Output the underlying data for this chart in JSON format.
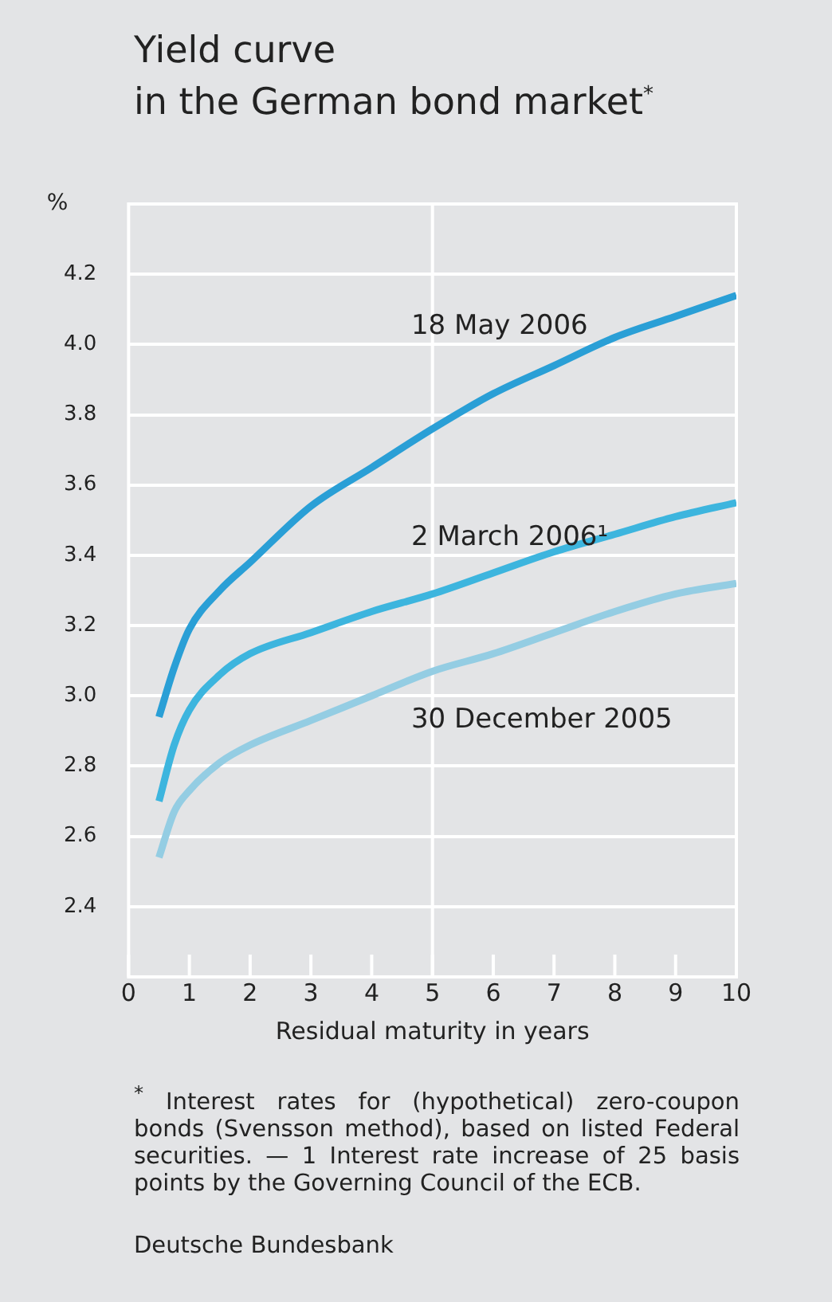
{
  "chart_data": {
    "type": "line",
    "title": "Yield curve\nin the German bond market$^{*}$",
    "xlabel": "Residual maturity in years",
    "ylabel": "%",
    "xlim": [
      0,
      10
    ],
    "xticks": [
      0,
      1,
      2,
      3,
      4,
      5,
      6,
      7,
      8,
      9,
      10
    ],
    "ylim": [
      2.2,
      4.4
    ],
    "yticks": [
      {
        "value": 2.2,
        "label": null
      },
      2.4,
      2.6,
      2.8,
      {
        "value": 3,
        "label": "3.0"
      },
      3.2,
      3.4,
      3.6,
      3.8,
      {
        "value": 4,
        "label": "4.0"
      },
      4.2,
      {
        "value": 4.4,
        "label": null
      }
    ],
    "grid": "y",
    "legend": false,
    "marker": "none",
    "line_style": "solid",
    "ref_lines": [
      {
        "axis": "x",
        "value": 5,
        "label": null,
        "color": "#ffffff"
      }
    ],
    "x": [
      0.5,
      0.75,
      1,
      1.5,
      2,
      3,
      4,
      5,
      6,
      7,
      8,
      9,
      10
    ],
    "series": [
      {
        "name": "18 May 2006",
        "color": "#2a9fd6",
        "values": [
          2.94,
          3.08,
          3.19,
          3.3,
          3.38,
          3.54,
          3.65,
          3.76,
          3.86,
          3.94,
          4.02,
          4.08,
          4.14
        ]
      },
      {
        "name": "2 March 2006¹",
        "color": "#3db5de",
        "values": [
          2.7,
          2.86,
          2.96,
          3.06,
          3.12,
          3.18,
          3.24,
          3.29,
          3.35,
          3.41,
          3.46,
          3.51,
          3.55
        ]
      },
      {
        "name": "30 December 2005",
        "color": "#94cde3",
        "values": [
          2.54,
          2.67,
          2.73,
          2.81,
          2.86,
          2.93,
          3.0,
          3.07,
          3.12,
          3.18,
          3.24,
          3.29,
          3.32
        ]
      }
    ],
    "annotations": [
      "$^{*}$ Interest rates for (hypothetical) zero-coupon bonds (Svensson method), based on listed Federal securities. — 1 Interest rate increase of 25 basis points by the Governing Council of the ECB.",
      "Deutsche Bundesbank"
    ]
  }
}
